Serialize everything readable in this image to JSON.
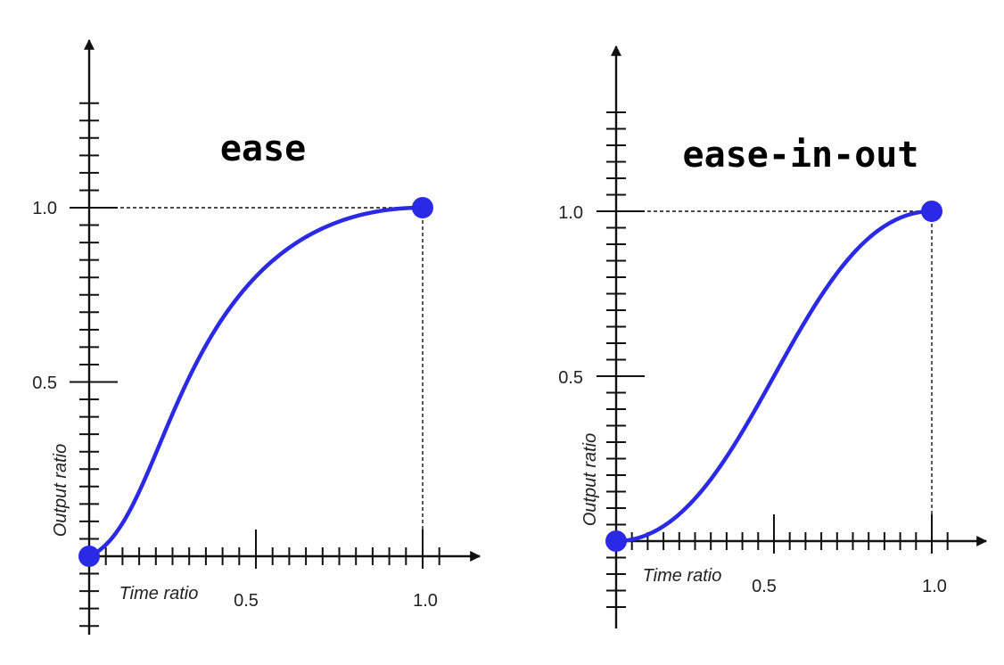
{
  "colors": {
    "curve": "#2a2ae6",
    "axis": "#111111"
  },
  "chart_data": [
    {
      "type": "line",
      "title": "ease",
      "xlabel": "Time ratio",
      "ylabel": "Output ratio",
      "x_ticks": [
        "0.5",
        "1.0"
      ],
      "y_ticks": [
        "0.5",
        "1.0"
      ],
      "xlim": [
        0,
        1
      ],
      "ylim": [
        0,
        1
      ],
      "grid": false,
      "bezier": [
        0.25,
        0.1,
        0.25,
        1.0
      ],
      "series": [
        {
          "x": [
            0.0,
            0.1,
            0.2,
            0.3,
            0.4,
            0.5,
            0.6,
            0.7,
            0.8,
            0.9,
            1.0
          ],
          "values": [
            0.0,
            0.1,
            0.3,
            0.52,
            0.68,
            0.8,
            0.88,
            0.94,
            0.98,
            0.995,
            1.0
          ]
        }
      ]
    },
    {
      "type": "line",
      "title": "ease-in-out",
      "xlabel": "Time ratio",
      "ylabel": "Output ratio",
      "x_ticks": [
        "0.5",
        "1.0"
      ],
      "y_ticks": [
        "0.5",
        "1.0"
      ],
      "xlim": [
        0,
        1
      ],
      "ylim": [
        0,
        1
      ],
      "grid": false,
      "bezier": [
        0.42,
        0.0,
        0.58,
        1.0
      ],
      "series": [
        {
          "x": [
            0.0,
            0.1,
            0.2,
            0.3,
            0.4,
            0.5,
            0.6,
            0.7,
            0.8,
            0.9,
            1.0
          ],
          "values": [
            0.0,
            0.02,
            0.08,
            0.18,
            0.33,
            0.5,
            0.67,
            0.82,
            0.92,
            0.98,
            1.0
          ]
        }
      ]
    }
  ]
}
